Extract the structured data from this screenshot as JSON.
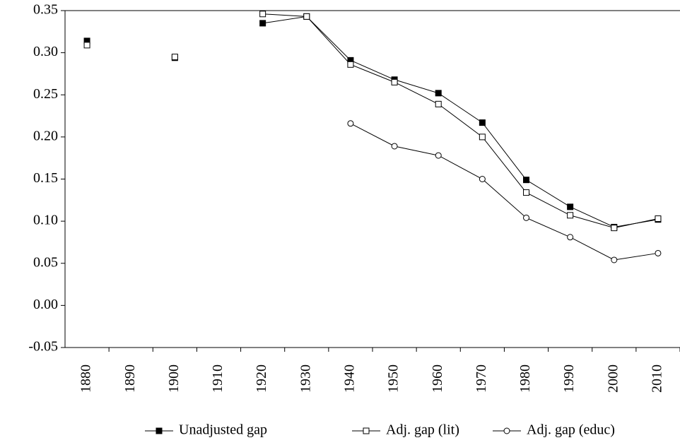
{
  "chart_data": {
    "type": "line",
    "categories": [
      "1880",
      "1890",
      "1900",
      "1910",
      "1920",
      "1930",
      "1940",
      "1950",
      "1960",
      "1970",
      "1980",
      "1990",
      "2000",
      "2010"
    ],
    "series": [
      {
        "name": "Unadjusted gap",
        "color": "#000000",
        "marker": "filled-square",
        "values": [
          0.314,
          null,
          0.294,
          null,
          0.335,
          0.343,
          0.291,
          0.268,
          0.252,
          0.217,
          0.149,
          0.117,
          0.093,
          0.102
        ]
      },
      {
        "name": "Adj. gap (lit)",
        "color": "#000000",
        "marker": "open-square",
        "values": [
          0.309,
          null,
          0.295,
          null,
          0.346,
          0.343,
          0.286,
          0.265,
          0.239,
          0.2,
          0.134,
          0.107,
          0.092,
          0.103
        ]
      },
      {
        "name": "Adj. gap (educ)",
        "color": "#000000",
        "marker": "open-circle",
        "values": [
          null,
          null,
          null,
          null,
          null,
          null,
          0.216,
          0.189,
          0.178,
          0.15,
          0.104,
          0.081,
          0.054,
          0.062
        ]
      }
    ],
    "ylim": [
      -0.05,
      0.35
    ],
    "yticks": [
      -0.05,
      {
        "value": 0,
        "label": "0.00"
      },
      0.05,
      {
        "value": 0.1,
        "label": "0.10"
      },
      0.15,
      {
        "value": 0.2,
        "label": "0.20"
      },
      0.25,
      {
        "value": 0.3,
        "label": "0.30"
      },
      0.35
    ],
    "grid": false,
    "legend": "bottom"
  }
}
